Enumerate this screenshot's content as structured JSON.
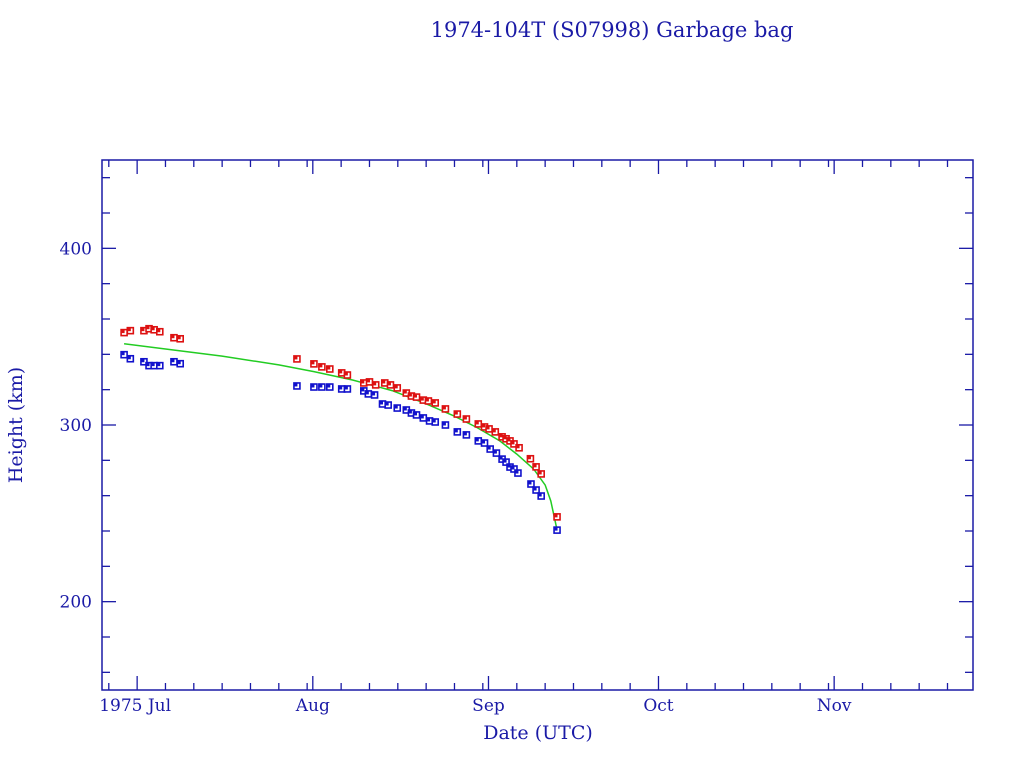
{
  "chart_data": {
    "type": "scatter",
    "title": "1974-104T (S07998) Garbage bag",
    "xlabel": "Date (UTC)",
    "ylabel": "Height (km)",
    "x_units": "days since 1975 Jul 1",
    "xlim": [
      -6.2,
      147.5
    ],
    "ylim": [
      150,
      450
    ],
    "yticks": [
      200,
      300,
      400
    ],
    "xticks": [
      {
        "day": 0,
        "label": "1975 Jul"
      },
      {
        "day": 31,
        "label": "Aug"
      },
      {
        "day": 62,
        "label": "Sep"
      },
      {
        "day": 92,
        "label": "Oct"
      },
      {
        "day": 123,
        "label": "Nov"
      }
    ],
    "colors": {
      "axis": "#1a1aa6",
      "apogee": "#dd1111",
      "perigee": "#1111cc",
      "fit": "#22cc22"
    },
    "series": [
      {
        "name": "apogee",
        "points": [
          [
            -2.3,
            352.3
          ],
          [
            -1.2,
            353.4
          ],
          [
            1.2,
            353.4
          ],
          [
            2.1,
            354.5
          ],
          [
            3.0,
            353.9
          ],
          [
            4.0,
            352.8
          ],
          [
            6.5,
            349.4
          ],
          [
            7.6,
            348.8
          ],
          [
            28.2,
            337.4
          ],
          [
            31.2,
            334.6
          ],
          [
            32.6,
            332.9
          ],
          [
            34.0,
            331.7
          ],
          [
            36.1,
            329.5
          ],
          [
            37.1,
            328.3
          ],
          [
            40.0,
            323.8
          ],
          [
            41.0,
            324.4
          ],
          [
            42.1,
            322.7
          ],
          [
            43.7,
            323.8
          ],
          [
            44.7,
            322.7
          ],
          [
            45.9,
            321.0
          ],
          [
            47.5,
            318.1
          ],
          [
            48.4,
            316.4
          ],
          [
            49.3,
            315.8
          ],
          [
            50.5,
            314.1
          ],
          [
            51.4,
            313.6
          ],
          [
            52.6,
            312.5
          ],
          [
            54.4,
            309.1
          ],
          [
            56.5,
            306.2
          ],
          [
            58.1,
            303.4
          ],
          [
            60.2,
            300.6
          ],
          [
            61.3,
            298.9
          ],
          [
            62.1,
            297.8
          ],
          [
            63.2,
            296.1
          ],
          [
            64.4,
            293.3
          ],
          [
            65.1,
            292.2
          ],
          [
            65.8,
            291.0
          ],
          [
            66.5,
            289.3
          ],
          [
            67.4,
            287.1
          ],
          [
            69.4,
            280.9
          ],
          [
            70.4,
            276.3
          ],
          [
            71.3,
            272.3
          ],
          [
            74.1,
            248.0
          ]
        ]
      },
      {
        "name": "perigee",
        "points": [
          [
            -2.3,
            339.8
          ],
          [
            -1.2,
            337.5
          ],
          [
            1.2,
            335.8
          ],
          [
            2.1,
            333.6
          ],
          [
            3.0,
            333.6
          ],
          [
            4.0,
            333.6
          ],
          [
            6.5,
            335.8
          ],
          [
            7.6,
            334.7
          ],
          [
            28.2,
            322.1
          ],
          [
            31.2,
            321.5
          ],
          [
            32.6,
            321.5
          ],
          [
            34.0,
            321.5
          ],
          [
            36.1,
            320.4
          ],
          [
            37.1,
            320.4
          ],
          [
            40.0,
            319.3
          ],
          [
            40.8,
            317.6
          ],
          [
            41.9,
            317.0
          ],
          [
            43.3,
            311.9
          ],
          [
            44.3,
            311.3
          ],
          [
            45.9,
            309.6
          ],
          [
            47.5,
            308.5
          ],
          [
            48.4,
            306.8
          ],
          [
            49.3,
            305.7
          ],
          [
            50.5,
            304.0
          ],
          [
            51.6,
            302.3
          ],
          [
            52.6,
            301.7
          ],
          [
            54.4,
            300.0
          ],
          [
            56.5,
            296.1
          ],
          [
            58.1,
            294.4
          ],
          [
            60.2,
            291.0
          ],
          [
            61.3,
            289.8
          ],
          [
            62.3,
            286.4
          ],
          [
            63.4,
            284.1
          ],
          [
            64.4,
            280.7
          ],
          [
            65.1,
            279.0
          ],
          [
            65.8,
            276.2
          ],
          [
            66.5,
            275.1
          ],
          [
            67.2,
            272.8
          ],
          [
            69.5,
            266.6
          ],
          [
            70.4,
            263.2
          ],
          [
            71.3,
            259.8
          ],
          [
            74.1,
            240.5
          ]
        ]
      },
      {
        "name": "fit",
        "points": [
          [
            -2.3,
            346.0
          ],
          [
            5.0,
            343.0
          ],
          [
            15.0,
            339.0
          ],
          [
            25.0,
            334.0
          ],
          [
            31.2,
            330.2
          ],
          [
            38.0,
            325.5
          ],
          [
            45.0,
            319.5
          ],
          [
            51.0,
            312.0
          ],
          [
            56.0,
            305.0
          ],
          [
            60.0,
            298.5
          ],
          [
            64.0,
            291.0
          ],
          [
            67.0,
            283.5
          ],
          [
            70.0,
            275.0
          ],
          [
            72.0,
            266.0
          ],
          [
            73.0,
            257.0
          ],
          [
            74.1,
            240.5
          ]
        ]
      }
    ]
  }
}
